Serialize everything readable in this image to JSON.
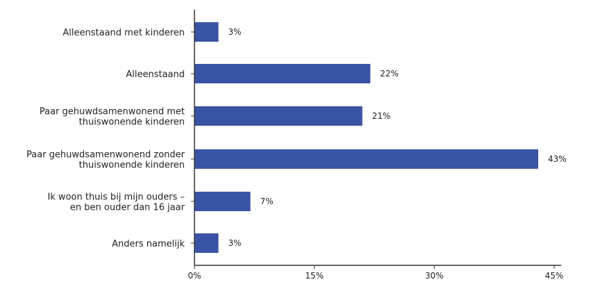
{
  "chart_data": {
    "type": "bar",
    "orientation": "horizontal",
    "categories": [
      [
        "Alleenstaand met kinderen"
      ],
      [
        "Alleenstaand"
      ],
      [
        "Paar gehuwdsamenwonend met",
        "thuiswonende kinderen"
      ],
      [
        "Paar gehuwdsamenwonend zonder",
        "thuiswonende kinderen"
      ],
      [
        "Ik woon thuis bij mijn ouders –",
        "en ben ouder dan 16 jaar"
      ],
      [
        "Anders namelijk"
      ]
    ],
    "values": [
      3,
      22,
      21,
      43,
      7,
      3
    ],
    "value_labels": [
      "3%",
      "22%",
      "21%",
      "43%",
      "7%",
      "3%"
    ],
    "xlim": [
      0,
      45
    ],
    "x_ticks": [
      0,
      15,
      30,
      45
    ],
    "x_tick_labels": [
      "0%",
      "15%",
      "30%",
      "45%"
    ],
    "bar_color": "#3a53a4",
    "axis_color": "#333333",
    "grid": false,
    "title": "",
    "xlabel": "",
    "ylabel": ""
  }
}
